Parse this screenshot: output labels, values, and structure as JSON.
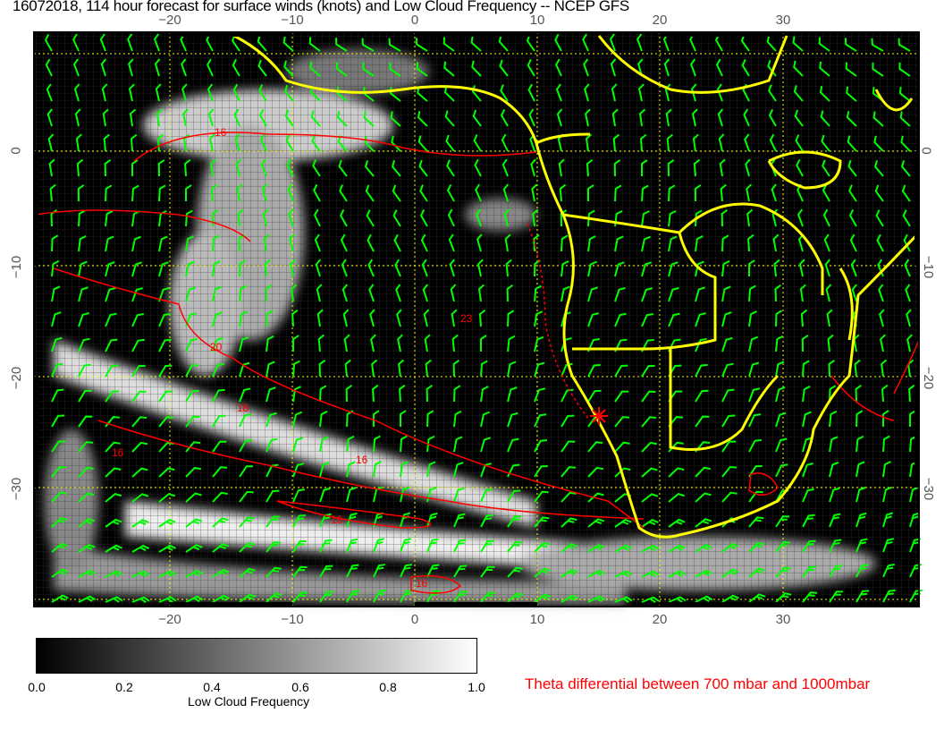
{
  "title": "16072018, 114 hour forecast for surface winds (knots) and Low Cloud Frequency -- NCEP GFS",
  "map": {
    "lon_ticks": [
      "−20",
      "−10",
      "0",
      "10",
      "20",
      "30"
    ],
    "lat_ticks": [
      "0",
      "−10",
      "−20",
      "−30"
    ],
    "contour_labels": [
      "16",
      "20",
      "18",
      "23",
      "16",
      "16",
      "16",
      "16"
    ],
    "colors": {
      "coast": "#ffff00",
      "contour": "#ff0000",
      "wind_barbs": "#00ff00",
      "grid": "#ffff00",
      "background": "#000000"
    }
  },
  "colorbar": {
    "ticks": [
      "0.0",
      "0.2",
      "0.4",
      "0.6",
      "0.8",
      "1.0"
    ],
    "label": "Low Cloud Frequency",
    "range": [
      0.0,
      1.0
    ]
  },
  "contour_legend": "Theta differential between 700 mbar and 1000mbar"
}
